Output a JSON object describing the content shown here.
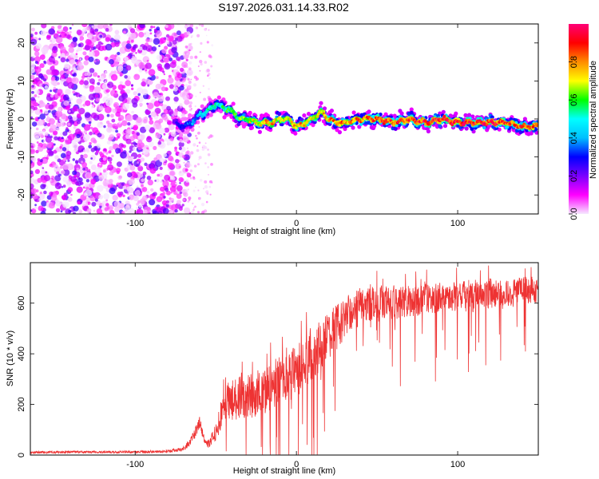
{
  "title": "S197.2026.031.14.33.R02",
  "chart_data": [
    {
      "type": "heatmap",
      "xlabel": "Height of straight line (km)",
      "ylabel": "Frequency (Hz)",
      "xlim": [
        -165,
        150
      ],
      "ylim": [
        -25,
        25
      ],
      "xticks": [
        -100,
        0,
        100
      ],
      "yticks": [
        -20,
        -10,
        0,
        10,
        20
      ],
      "colorbar": {
        "label": "Normalized spectral amplitude",
        "range": [
          0,
          1
        ],
        "ticks": [
          0.0,
          0.2,
          0.4,
          0.6,
          0.8
        ],
        "tick_labels": [
          "0.0",
          "0.2",
          "0.4",
          "0.6",
          "0.8"
        ],
        "colormap": [
          "#f6e8ff",
          "#ff00ff",
          "#7b00ff",
          "#0000ff",
          "#00bfff",
          "#00ffff",
          "#00ff00",
          "#ffff00",
          "#ff8c00",
          "#ff0000",
          "#ff0077"
        ]
      },
      "ridge": {
        "x": [
          -75,
          -70,
          -65,
          -60,
          -55,
          -50,
          -45,
          -40,
          -35,
          -30,
          -25,
          -20,
          -15,
          -10,
          -5,
          0,
          5,
          10,
          15,
          20,
          25,
          30,
          40,
          50,
          60,
          70,
          80,
          90,
          100,
          110,
          120,
          130,
          140,
          148
        ],
        "freq": [
          -1,
          -2,
          -1,
          1,
          2,
          4,
          3,
          2,
          0,
          0,
          -1,
          -1,
          -1,
          0,
          0,
          -2,
          -1,
          0,
          2,
          0,
          -1,
          -1,
          0,
          0,
          -1,
          0,
          -1,
          0,
          -1,
          -1,
          -1,
          -1,
          -2,
          -2
        ],
        "amplitude": [
          0.25,
          0.35,
          0.4,
          0.45,
          0.5,
          0.5,
          0.55,
          0.6,
          0.6,
          0.65,
          0.7,
          0.75,
          0.75,
          0.7,
          0.7,
          0.75,
          0.75,
          0.7,
          0.75,
          0.8,
          0.8,
          0.8,
          0.8,
          0.85,
          0.85,
          0.85,
          0.9,
          0.9,
          0.9,
          0.9,
          0.9,
          0.85,
          0.85,
          0.85
        ]
      },
      "noise_region_x": [
        -165,
        -70
      ]
    },
    {
      "type": "line",
      "xlabel": "Height of straight line (km)",
      "ylabel": "SNR (10 * v/v)",
      "xlim": [
        -165,
        150
      ],
      "ylim": [
        0,
        760
      ],
      "xticks": [
        -100,
        0,
        100
      ],
      "yticks": [
        0,
        200,
        400,
        600
      ],
      "series": [
        {
          "name": "SNR",
          "color": "#ee3333",
          "x": [
            -165,
            -140,
            -120,
            -100,
            -80,
            -70,
            -65,
            -62,
            -60,
            -58,
            -55,
            -50,
            -45,
            -40,
            -30,
            -20,
            -10,
            0,
            10,
            20,
            30,
            40,
            50,
            60,
            70,
            80,
            90,
            100,
            110,
            120,
            130,
            140,
            150
          ],
          "y": [
            10,
            12,
            12,
            12,
            14,
            25,
            60,
            100,
            130,
            80,
            40,
            90,
            200,
            220,
            230,
            250,
            300,
            330,
            400,
            470,
            540,
            590,
            600,
            600,
            610,
            620,
            620,
            630,
            620,
            640,
            640,
            650,
            650
          ],
          "noise_amplitude": [
            8,
            8,
            8,
            8,
            10,
            15,
            30,
            40,
            40,
            30,
            30,
            60,
            120,
            140,
            150,
            160,
            170,
            170,
            170,
            160,
            140,
            120,
            110,
            110,
            110,
            110,
            100,
            100,
            100,
            100,
            90,
            90,
            90
          ]
        }
      ]
    }
  ]
}
